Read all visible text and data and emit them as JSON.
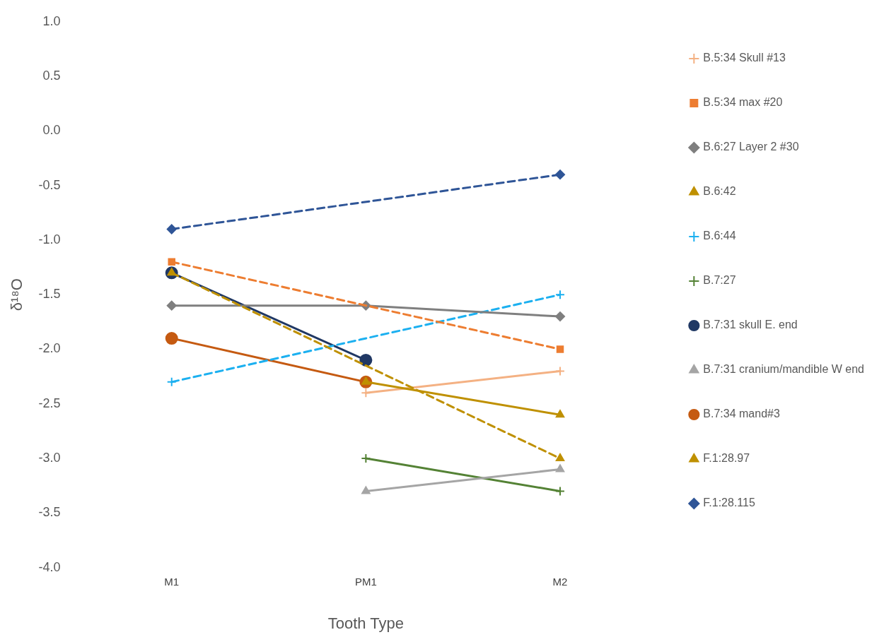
{
  "chart_data": {
    "type": "line",
    "xlabel": "Tooth Type",
    "ylabel": "δ¹⁸O",
    "categories": [
      "M1",
      "PM1",
      "M2"
    ],
    "ylim": [
      -4,
      1
    ],
    "yticks": [
      {
        "value": -4,
        "label": "-4.0"
      },
      {
        "value": -3.5,
        "label": "-3.5"
      },
      {
        "value": -3,
        "label": "-3.0"
      },
      {
        "value": -2.5,
        "label": "-2.5"
      },
      {
        "value": -2,
        "label": "-2.0"
      },
      {
        "value": -1.5,
        "label": "-1.5"
      },
      {
        "value": -1,
        "label": "-1.0"
      },
      {
        "value": -0.5,
        "label": "-0.5"
      },
      {
        "value": 0,
        "label": "0.0"
      },
      {
        "value": 0.5,
        "label": "0.5"
      },
      {
        "value": 1,
        "label": "1.0"
      }
    ],
    "grid": false,
    "legend": "right",
    "series": [
      {
        "name": "B.5:34 Skull #13",
        "color": "#f4b183",
        "marker": "cross",
        "line_style": "solid",
        "values": [
          null,
          -2.4,
          -2.2
        ]
      },
      {
        "name": "B.5:34 max #20",
        "color": "#ed7d31",
        "marker": "square",
        "line_style": "dashed",
        "values": [
          -1.2,
          null,
          -2.0
        ]
      },
      {
        "name": "B.6:27 Layer 2 #30",
        "color": "#7f7f7f",
        "marker": "diamond",
        "line_style": "solid",
        "values": [
          -1.6,
          -1.6,
          -1.7
        ]
      },
      {
        "name": "B.6:42",
        "color": "#bf9000",
        "marker": "triangle",
        "line_style": "solid",
        "values": [
          null,
          -2.3,
          -2.6
        ]
      },
      {
        "name": "B.6:44",
        "color": "#1cb0f0",
        "marker": "cross",
        "line_style": "dashed",
        "values": [
          -2.3,
          null,
          -1.5
        ]
      },
      {
        "name": "B.7:27",
        "color": "#548235",
        "marker": "cross",
        "line_style": "solid",
        "values": [
          null,
          -3.0,
          -3.3
        ]
      },
      {
        "name": "B.7:31 skull E. end",
        "color": "#203864",
        "marker": "circle",
        "line_style": "solid",
        "values": [
          -1.3,
          -2.1,
          null
        ]
      },
      {
        "name": "B.7:31 cranium/mandible W end",
        "color": "#a5a5a5",
        "marker": "triangle",
        "line_style": "solid",
        "values": [
          null,
          -3.3,
          -3.1
        ]
      },
      {
        "name": "B.7:34 mand#3",
        "color": "#c55a11",
        "marker": "circle",
        "line_style": "solid",
        "values": [
          -1.9,
          -2.3,
          null
        ]
      },
      {
        "name": "F.1:28.97",
        "color": "#bf9000",
        "marker": "triangle",
        "line_style": "dashed",
        "values": [
          -1.3,
          null,
          -3.0
        ]
      },
      {
        "name": "F.1:28.115",
        "color": "#2f5597",
        "marker": "diamond",
        "line_style": "dashed",
        "values": [
          -0.9,
          null,
          -0.4
        ]
      }
    ]
  }
}
